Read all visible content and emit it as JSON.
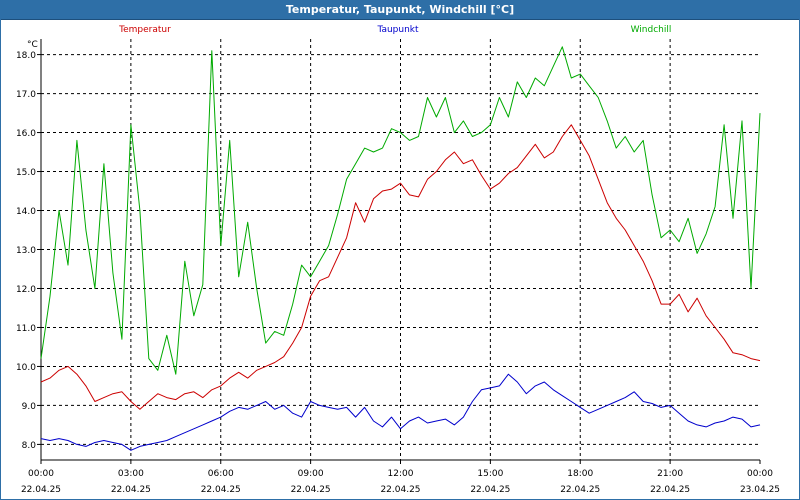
{
  "window": {
    "title": "Temperatur, Taupunkt, Windchill [°C]"
  },
  "chart_data": {
    "type": "line",
    "title": "Temperatur, Taupunkt, Windchill [°C]",
    "ylabel": "°C",
    "ylim": [
      7.6,
      18.4
    ],
    "y_ticks": [
      8.0,
      9.0,
      10.0,
      11.0,
      12.0,
      13.0,
      14.0,
      15.0,
      16.0,
      17.0,
      18.0
    ],
    "x_range_hours": [
      0,
      24
    ],
    "x_ticks": [
      {
        "h": 0,
        "time": "00:00",
        "date": "22.04.25"
      },
      {
        "h": 3,
        "time": "03:00",
        "date": "22.04.25"
      },
      {
        "h": 6,
        "time": "06:00",
        "date": "22.04.25"
      },
      {
        "h": 9,
        "time": "09:00",
        "date": "22.04.25"
      },
      {
        "h": 12,
        "time": "12:00",
        "date": "22.04.25"
      },
      {
        "h": 15,
        "time": "15:00",
        "date": "22.04.25"
      },
      {
        "h": 18,
        "time": "18:00",
        "date": "22.04.25"
      },
      {
        "h": 21,
        "time": "21:00",
        "date": "22.04.25"
      },
      {
        "h": 24,
        "time": "00:00",
        "date": "23.04.25"
      }
    ],
    "grid": true,
    "legend_position": "top",
    "series": [
      {
        "name": "Temperatur",
        "color": "#cc0000",
        "x": [
          0,
          0.3,
          0.6,
          0.9,
          1.2,
          1.5,
          1.8,
          2.1,
          2.4,
          2.7,
          3.0,
          3.3,
          3.6,
          3.9,
          4.2,
          4.5,
          4.8,
          5.1,
          5.4,
          5.7,
          6.0,
          6.3,
          6.6,
          6.9,
          7.2,
          7.5,
          7.8,
          8.1,
          8.4,
          8.7,
          9.0,
          9.3,
          9.6,
          9.9,
          10.2,
          10.5,
          10.8,
          11.1,
          11.4,
          11.7,
          12.0,
          12.3,
          12.6,
          12.9,
          13.2,
          13.5,
          13.8,
          14.1,
          14.4,
          14.7,
          15.0,
          15.3,
          15.6,
          15.9,
          16.2,
          16.5,
          16.8,
          17.1,
          17.4,
          17.7,
          18.0,
          18.3,
          18.6,
          18.9,
          19.2,
          19.5,
          19.8,
          20.1,
          20.4,
          20.7,
          21.0,
          21.3,
          21.6,
          21.9,
          22.2,
          22.5,
          22.8,
          23.1,
          23.4,
          23.7,
          24.0
        ],
        "values": [
          9.6,
          9.7,
          9.9,
          10.0,
          9.8,
          9.5,
          9.1,
          9.2,
          9.3,
          9.35,
          9.1,
          8.9,
          9.1,
          9.3,
          9.2,
          9.15,
          9.3,
          9.35,
          9.2,
          9.4,
          9.5,
          9.7,
          9.85,
          9.7,
          9.9,
          10.0,
          10.1,
          10.25,
          10.6,
          11.0,
          11.8,
          12.2,
          12.3,
          12.8,
          13.3,
          14.2,
          13.7,
          14.3,
          14.5,
          14.55,
          14.7,
          14.4,
          14.35,
          14.8,
          15.0,
          15.3,
          15.5,
          15.2,
          15.3,
          14.9,
          14.55,
          14.7,
          14.95,
          15.1,
          15.4,
          15.7,
          15.35,
          15.5,
          15.9,
          16.2,
          15.8,
          15.4,
          14.8,
          14.2,
          13.8,
          13.5,
          13.1,
          12.7,
          12.2,
          11.6,
          11.6,
          11.85,
          11.4,
          11.75,
          11.3,
          11.0,
          10.7,
          10.35,
          10.3,
          10.2,
          10.15
        ]
      },
      {
        "name": "Taupunkt",
        "color": "#0000cc",
        "x": [
          0,
          0.3,
          0.6,
          0.9,
          1.2,
          1.5,
          1.8,
          2.1,
          2.4,
          2.7,
          3.0,
          3.3,
          3.6,
          3.9,
          4.2,
          4.5,
          4.8,
          5.1,
          5.4,
          5.7,
          6.0,
          6.3,
          6.6,
          6.9,
          7.2,
          7.5,
          7.8,
          8.1,
          8.4,
          8.7,
          9.0,
          9.3,
          9.6,
          9.9,
          10.2,
          10.5,
          10.8,
          11.1,
          11.4,
          11.7,
          12.0,
          12.3,
          12.6,
          12.9,
          13.2,
          13.5,
          13.8,
          14.1,
          14.4,
          14.7,
          15.0,
          15.3,
          15.6,
          15.9,
          16.2,
          16.5,
          16.8,
          17.1,
          17.4,
          17.7,
          18.0,
          18.3,
          18.6,
          18.9,
          19.2,
          19.5,
          19.8,
          20.1,
          20.4,
          20.7,
          21.0,
          21.3,
          21.6,
          21.9,
          22.2,
          22.5,
          22.8,
          23.1,
          23.4,
          23.7,
          24.0
        ],
        "values": [
          8.15,
          8.1,
          8.15,
          8.1,
          8.0,
          7.95,
          8.05,
          8.1,
          8.05,
          8.0,
          7.85,
          7.95,
          8.0,
          8.05,
          8.1,
          8.2,
          8.3,
          8.4,
          8.5,
          8.6,
          8.7,
          8.85,
          8.95,
          8.9,
          9.0,
          9.1,
          8.9,
          9.0,
          8.8,
          8.7,
          9.1,
          9.0,
          8.95,
          8.9,
          8.95,
          8.7,
          8.95,
          8.6,
          8.45,
          8.7,
          8.4,
          8.6,
          8.7,
          8.55,
          8.6,
          8.65,
          8.5,
          8.7,
          9.1,
          9.4,
          9.45,
          9.5,
          9.8,
          9.6,
          9.3,
          9.5,
          9.6,
          9.4,
          9.25,
          9.1,
          8.95,
          8.8,
          8.9,
          9.0,
          9.1,
          9.2,
          9.35,
          9.1,
          9.05,
          8.95,
          9.0,
          8.8,
          8.6,
          8.5,
          8.45,
          8.55,
          8.6,
          8.7,
          8.65,
          8.45,
          8.5
        ]
      },
      {
        "name": "Windchill",
        "color": "#00aa00",
        "x": [
          0,
          0.3,
          0.6,
          0.9,
          1.2,
          1.5,
          1.8,
          2.1,
          2.4,
          2.7,
          3.0,
          3.3,
          3.6,
          3.9,
          4.2,
          4.5,
          4.8,
          5.1,
          5.4,
          5.7,
          6.0,
          6.3,
          6.6,
          6.9,
          7.2,
          7.5,
          7.8,
          8.1,
          8.4,
          8.7,
          9.0,
          9.3,
          9.6,
          9.9,
          10.2,
          10.5,
          10.8,
          11.1,
          11.4,
          11.7,
          12.0,
          12.3,
          12.6,
          12.9,
          13.2,
          13.5,
          13.8,
          14.1,
          14.4,
          14.7,
          15.0,
          15.3,
          15.6,
          15.9,
          16.2,
          16.5,
          16.8,
          17.1,
          17.4,
          17.7,
          18.0,
          18.3,
          18.6,
          18.9,
          19.2,
          19.5,
          19.8,
          20.1,
          20.4,
          20.7,
          21.0,
          21.3,
          21.6,
          21.9,
          22.2,
          22.5,
          22.8,
          23.1,
          23.4,
          23.7,
          24.0
        ],
        "values": [
          10.2,
          11.8,
          14.0,
          12.6,
          15.8,
          13.5,
          12.0,
          15.2,
          12.4,
          10.7,
          16.2,
          14.0,
          10.2,
          9.9,
          10.8,
          9.8,
          12.7,
          11.3,
          12.1,
          18.1,
          13.1,
          15.8,
          12.3,
          13.7,
          12.0,
          10.6,
          10.9,
          10.8,
          11.6,
          12.6,
          12.3,
          12.7,
          13.1,
          13.9,
          14.8,
          15.2,
          15.6,
          15.5,
          15.6,
          16.1,
          16.0,
          15.8,
          15.9,
          16.9,
          16.4,
          16.9,
          16.0,
          16.3,
          15.9,
          16.0,
          16.2,
          16.9,
          16.4,
          17.3,
          16.9,
          17.4,
          17.2,
          17.7,
          18.2,
          17.4,
          17.5,
          17.2,
          16.9,
          16.3,
          15.6,
          15.9,
          15.5,
          15.8,
          14.4,
          13.3,
          13.5,
          13.2,
          13.8,
          12.9,
          13.4,
          14.1,
          16.2,
          13.8,
          16.3,
          12.0,
          16.5
        ]
      }
    ]
  }
}
